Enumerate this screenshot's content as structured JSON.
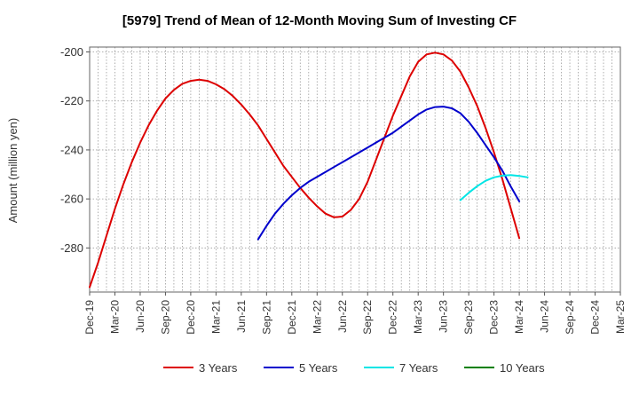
{
  "chart_data": {
    "type": "line",
    "title": "[5979]  Trend of Mean of 12-Month Moving Sum of Investing CF",
    "xlabel": "",
    "ylabel": "Amount (million yen)",
    "ylim": [
      -298,
      -198
    ],
    "yticks": [
      -200,
      -220,
      -240,
      -260,
      -280
    ],
    "x_start": "2019-12",
    "x_end": "2025-03",
    "grid": true,
    "legend_position": "bottom",
    "tick_labels": [
      "Dec-19",
      "Mar-20",
      "Jun-20",
      "Sep-20",
      "Dec-20",
      "Mar-21",
      "Jun-21",
      "Sep-21",
      "Dec-21",
      "Mar-22",
      "Jun-22",
      "Sep-22",
      "Dec-22",
      "Mar-23",
      "Jun-23",
      "Sep-23",
      "Dec-23",
      "Mar-24",
      "Jun-24",
      "Sep-24",
      "Dec-24",
      "Mar-25"
    ],
    "series": [
      {
        "name": "3 Years",
        "color": "#dd0000",
        "start": "2019-12",
        "values": [
          -296,
          -286,
          -275,
          -264,
          -254,
          -245,
          -237,
          -230,
          -224,
          -219,
          -215.5,
          -213,
          -211.8,
          -211.3,
          -211.8,
          -213.2,
          -215.2,
          -218,
          -221.5,
          -225.5,
          -230,
          -235.5,
          -241,
          -246.5,
          -251,
          -255.5,
          -259.5,
          -263,
          -266,
          -267.5,
          -267.2,
          -264.5,
          -260,
          -253,
          -244,
          -235,
          -226,
          -218,
          -210,
          -204,
          -201,
          -200.3,
          -201,
          -203.5,
          -208,
          -214.5,
          -222,
          -231,
          -241,
          -252,
          -264,
          -276
        ]
      },
      {
        "name": "5 Years",
        "color": "#0000cc",
        "start": "2021-08",
        "values": [
          -276.5,
          -271,
          -266,
          -262,
          -258.5,
          -255.5,
          -253,
          -251,
          -249,
          -247,
          -245,
          -243,
          -241,
          -239,
          -237,
          -235,
          -233,
          -230.5,
          -228,
          -225.5,
          -223.5,
          -222.5,
          -222.3,
          -223,
          -225,
          -228.5,
          -233,
          -238,
          -243,
          -248.5,
          -255,
          -261
        ]
      },
      {
        "name": "7 Years",
        "color": "#00e5e5",
        "start": "2023-08",
        "values": [
          -260.5,
          -257.5,
          -254.8,
          -252.6,
          -251.2,
          -250.5,
          -250.3,
          -250.6,
          -251.2
        ]
      },
      {
        "name": "10 Years",
        "color": "#008000",
        "start": "2024-03",
        "values": []
      }
    ]
  }
}
